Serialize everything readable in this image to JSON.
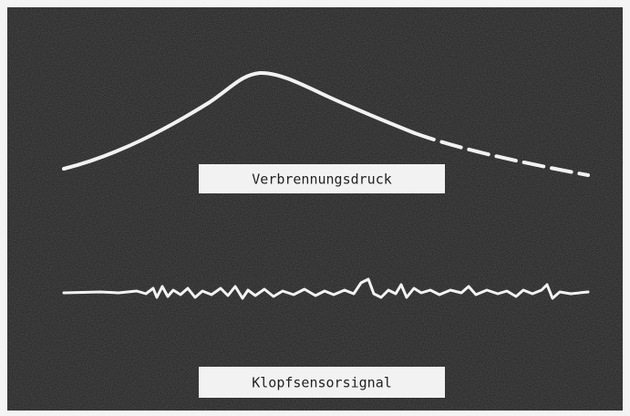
{
  "labels": {
    "upper": "Verbrennungsdruck",
    "lower": "Klopfsensorsignal"
  }
}
